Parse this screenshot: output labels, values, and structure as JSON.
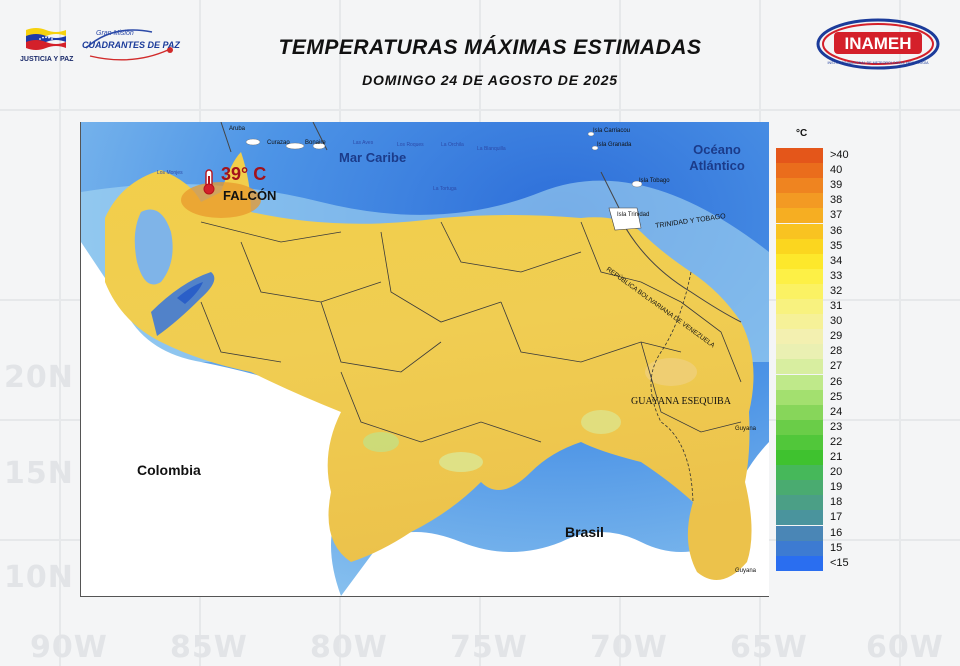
{
  "header": {
    "title": "TEMPERATURAS MÁXIMAS ESTIMADAS",
    "subtitle": "DOMINGO 24 DE AGOSTO DE 2025",
    "left_logo_caption": "JUSTICIA Y PAZ",
    "mission_small": "Gran Misión",
    "mission_big": "CUADRANTES DE PAZ",
    "right_logo": "INAMEH",
    "right_logo_caption": "INSTITUTO NACIONAL DE METEOROLOGÍA E HIDROLOGÍA"
  },
  "background_labels": [
    "20N",
    "15N",
    "10N",
    "90W",
    "85W",
    "80W",
    "75W",
    "70W",
    "65W",
    "60W"
  ],
  "map": {
    "labels": {
      "sea": "Mar Caribe",
      "ocean": "Océano Atlántico",
      "colombia": "Colombia",
      "brasil": "Brasil",
      "guayana": "GUAYANA ESEQUIBA",
      "trinidad_tobago": "TRINIDAD Y TOBAGO",
      "border": "REPÚBLICA BOLIVARIANA DE VENEZUELA",
      "aruba": "Aruba",
      "curazao": "Curazao",
      "bonaire": "Bonaire",
      "los_monjes": "Los Monjes",
      "las_aves": "Las Aves",
      "los_roques": "Los Roques",
      "la_orchila": "La Orchila",
      "la_blanquilla": "La Blanquilla",
      "la_tortuga": "La Tortuga",
      "carriacou": "Isla Carriacou",
      "granada": "Isla Granada",
      "tobago": "Isla Tobago",
      "trinidad": "Isla Trinidad",
      "guyana": "Guyana",
      "guyana_south": "Guyana"
    },
    "max_station": {
      "value": "39° C",
      "name": "FALCÓN"
    }
  },
  "legend": {
    "unit": "°C",
    "items": [
      {
        "label": ">40",
        "color": "#e4561a"
      },
      {
        "label": "40",
        "color": "#ea6d1c"
      },
      {
        "label": "39",
        "color": "#ef8420"
      },
      {
        "label": "38",
        "color": "#f39a23"
      },
      {
        "label": "37",
        "color": "#f6ae22"
      },
      {
        "label": "36",
        "color": "#f9c321"
      },
      {
        "label": "35",
        "color": "#fbd61f"
      },
      {
        "label": "34",
        "color": "#fde82b"
      },
      {
        "label": "33",
        "color": "#fdf046"
      },
      {
        "label": "32",
        "color": "#fbf263"
      },
      {
        "label": "31",
        "color": "#f8f27f"
      },
      {
        "label": "30",
        "color": "#f6f198"
      },
      {
        "label": "29",
        "color": "#f3f0b0"
      },
      {
        "label": "28",
        "color": "#eaf0b2"
      },
      {
        "label": "27",
        "color": "#d8eea0"
      },
      {
        "label": "26",
        "color": "#bfe98a"
      },
      {
        "label": "25",
        "color": "#a3e06f"
      },
      {
        "label": "24",
        "color": "#87d65a"
      },
      {
        "label": "23",
        "color": "#6acd48"
      },
      {
        "label": "22",
        "color": "#51c73a"
      },
      {
        "label": "21",
        "color": "#3fc22f"
      },
      {
        "label": "20",
        "color": "#46b85a"
      },
      {
        "label": "19",
        "color": "#4aab70"
      },
      {
        "label": "18",
        "color": "#4b9f86"
      },
      {
        "label": "17",
        "color": "#4a949d"
      },
      {
        "label": "16",
        "color": "#4a86b6"
      },
      {
        "label": "15",
        "color": "#3d7bd2"
      },
      {
        "label": "<15",
        "color": "#2a6ef0"
      }
    ]
  }
}
